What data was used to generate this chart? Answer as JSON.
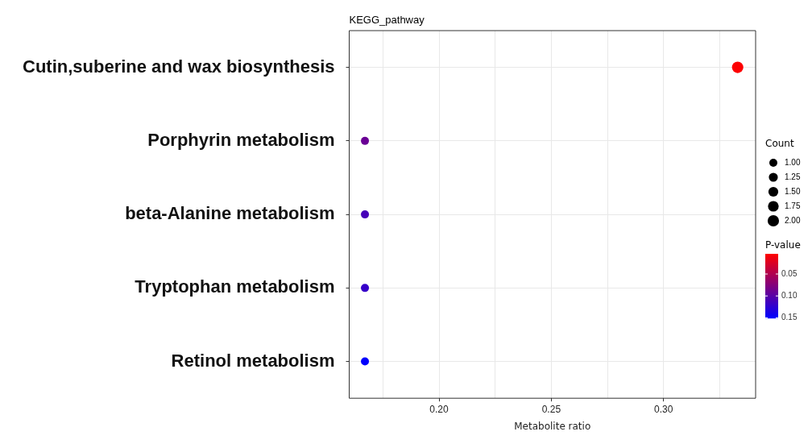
{
  "chart_data": {
    "type": "bubble",
    "title": "KEGG_pathway",
    "xlabel": "Metabolite ratio",
    "categories": [
      "Cutin,suberine and wax biosynthesis",
      "Porphyrin metabolism",
      "beta-Alanine metabolism",
      "Tryptophan metabolism",
      "Retinol metabolism"
    ],
    "orientation": "horizontal",
    "values": [
      0.333,
      0.167,
      0.167,
      0.167,
      0.167
    ],
    "sizes": [
      2,
      1,
      1,
      1,
      1
    ],
    "cvalues": [
      0.005,
      0.09,
      0.11,
      0.12,
      0.15
    ],
    "size_legend": [
      {
        "value": 1,
        "label": "1.00"
      },
      {
        "value": 1.25,
        "label": "1.25"
      },
      {
        "value": 1.5,
        "label": "1.50"
      },
      {
        "value": 1.75,
        "label": "1.75"
      },
      {
        "value": 2,
        "label": "2.00"
      }
    ],
    "legend_title": "Count",
    "clabel": "P-value",
    "clim": [
      0.004,
      0.151
    ],
    "cticks": [
      {
        "value": 0.05,
        "label": "0.05"
      },
      {
        "value": 0.1,
        "label": "0.10"
      },
      {
        "value": 0.15,
        "label": "0.15"
      }
    ],
    "xlim": [
      0.16,
      0.341
    ],
    "xticks": [
      {
        "value": 0.175,
        "label": null
      },
      {
        "value": 0.2,
        "label": "0.20"
      },
      {
        "value": 0.225,
        "label": null
      },
      {
        "value": 0.25,
        "label": "0.25"
      },
      {
        "value": 0.275,
        "label": null
      },
      {
        "value": 0.3,
        "label": "0.30"
      },
      {
        "value": 0.325,
        "label": null
      }
    ],
    "grid": true,
    "marker": "circle"
  }
}
